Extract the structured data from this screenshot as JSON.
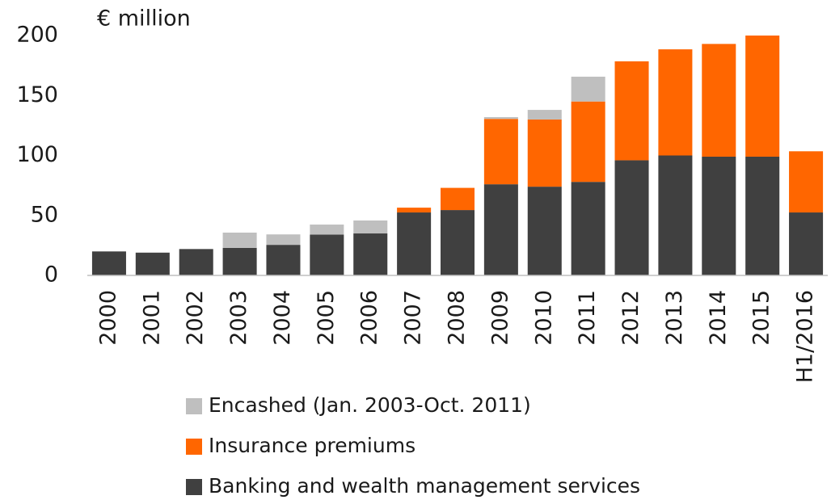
{
  "chart_data": {
    "type": "stacked_bar",
    "y_label": "€ million",
    "categories": [
      "2000",
      "2001",
      "2002",
      "2003",
      "2004",
      "2005",
      "2006",
      "2007",
      "2008",
      "2009",
      "2010",
      "2011",
      "2012",
      "2013",
      "2014",
      "2015",
      "H1/2016"
    ],
    "series": [
      {
        "name": "Banking and wealth management services",
        "color": "#404040",
        "values": [
          20,
          19,
          22,
          23,
          25.5,
          34,
          35,
          52.5,
          54.5,
          76,
          74,
          78,
          96,
          100,
          99,
          99,
          52.5
        ]
      },
      {
        "name": "Insurance premiums",
        "color": "#ff6600",
        "values": [
          0,
          0,
          0,
          0,
          0,
          0,
          0,
          4,
          18.5,
          54.5,
          56,
          67,
          82.5,
          88.5,
          94,
          101,
          51
        ]
      },
      {
        "name": "Encashed (Jan. 2003-Oct. 2011)",
        "color": "#bfbfbf",
        "values": [
          0,
          0,
          0,
          12.7,
          8.7,
          8.4,
          10.8,
          0,
          0,
          1.5,
          8,
          20.7,
          0,
          0,
          0,
          0,
          0
        ]
      }
    ],
    "ylim": [
      0,
      200
    ],
    "yticks": [
      0,
      50,
      100,
      150,
      200
    ],
    "grid": false
  }
}
